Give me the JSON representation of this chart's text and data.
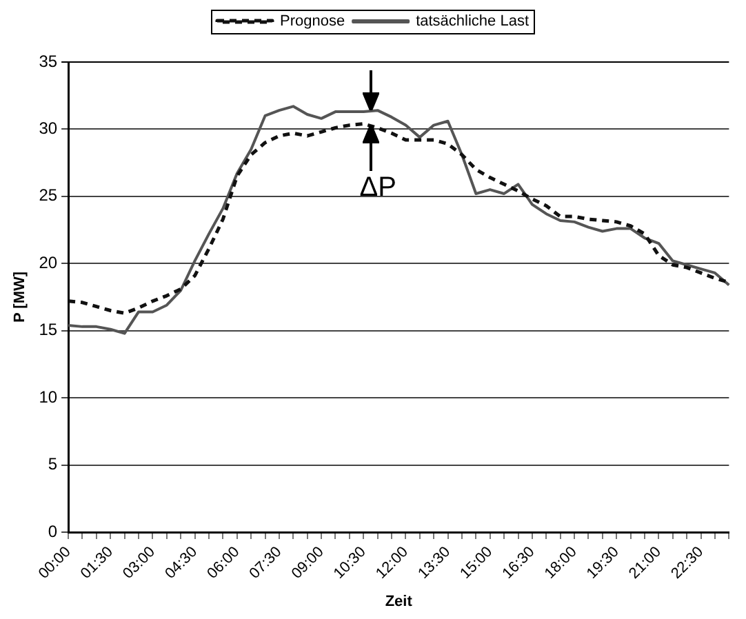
{
  "chart_data": {
    "type": "line",
    "xlabel": "Zeit",
    "ylabel": "P [MW]",
    "categories": [
      "00:00",
      null,
      null,
      "01:30",
      null,
      null,
      "03:00",
      null,
      null,
      "04:30",
      null,
      null,
      "06:00",
      null,
      null,
      "07:30",
      null,
      null,
      "09:00",
      null,
      null,
      "10:30",
      null,
      null,
      "12:00",
      null,
      null,
      "13:30",
      null,
      null,
      "15:00",
      null,
      null,
      "16:30",
      null,
      null,
      "18:00",
      null,
      null,
      "19:30",
      null,
      null,
      "21:00",
      null,
      null,
      "22:30",
      null,
      null
    ],
    "series": [
      {
        "name": "Prognose",
        "color": "#111111",
        "line_style": "dashed",
        "values": [
          17.2,
          17.1,
          16.8,
          16.5,
          16.3,
          16.7,
          17.2,
          17.6,
          18.1,
          19.1,
          21.1,
          23.3,
          26.5,
          28.1,
          29.0,
          29.5,
          29.7,
          29.5,
          29.8,
          30.1,
          30.3,
          30.4,
          30.1,
          29.7,
          29.2,
          29.2,
          29.2,
          28.9,
          28.1,
          27.0,
          26.4,
          25.9,
          25.4,
          24.8,
          24.3,
          23.5,
          23.5,
          23.3,
          23.2,
          23.1,
          22.8,
          22.2,
          20.6,
          19.9,
          19.7,
          19.3,
          18.9,
          18.6
        ]
      },
      {
        "name": "tatsächliche Last",
        "color": "#555555",
        "line_style": "solid",
        "values": [
          15.4,
          15.3,
          15.3,
          15.1,
          14.8,
          16.4,
          16.4,
          16.9,
          18.0,
          20.2,
          22.2,
          24.1,
          26.7,
          28.5,
          31.0,
          31.4,
          31.7,
          31.1,
          30.8,
          31.3,
          31.3,
          31.3,
          31.4,
          30.9,
          30.3,
          29.4,
          30.3,
          30.6,
          28.1,
          25.2,
          25.5,
          25.2,
          25.9,
          24.4,
          23.7,
          23.2,
          23.1,
          22.7,
          22.4,
          22.6,
          22.6,
          21.9,
          21.5,
          20.2,
          19.9,
          19.6,
          19.3,
          18.4
        ]
      }
    ],
    "ylim": [
      0,
      35
    ],
    "yticks": [
      0,
      5,
      10,
      15,
      20,
      25,
      30,
      35
    ],
    "grid": "y",
    "legend": "top",
    "marker": "none",
    "annotations": [
      "ΔP"
    ]
  }
}
